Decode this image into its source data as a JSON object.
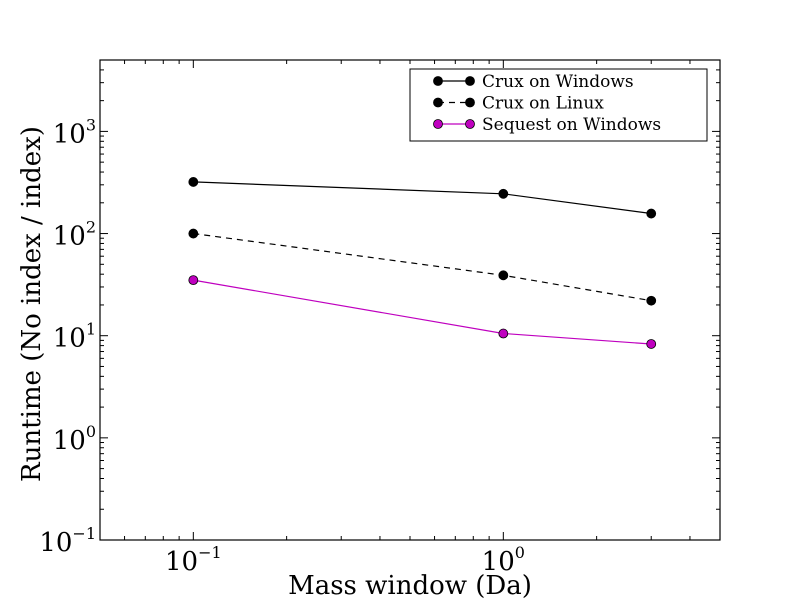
{
  "chart_data": {
    "type": "line",
    "xlabel": "Mass window (Da)",
    "ylabel": "Runtime (No index / index)",
    "xscale": "log",
    "yscale": "log",
    "xlim": [
      0.05,
      5
    ],
    "ylim": [
      0.1,
      5000
    ],
    "grid": false,
    "legend_position": "top-right",
    "x_ticks": [
      {
        "value": 0.1,
        "base": "10",
        "exp": "−1"
      },
      {
        "value": 1,
        "base": "10",
        "exp": "0"
      }
    ],
    "y_ticks": [
      {
        "value": 0.1,
        "base": "10",
        "exp": "−1"
      },
      {
        "value": 1,
        "base": "10",
        "exp": "0"
      },
      {
        "value": 10,
        "base": "10",
        "exp": "1"
      },
      {
        "value": 100,
        "base": "10",
        "exp": "2"
      },
      {
        "value": 1000,
        "base": "10",
        "exp": "3"
      }
    ],
    "x": [
      0.1,
      1,
      3
    ],
    "series": [
      {
        "name": "Crux on Windows",
        "values": [
          320,
          245,
          157
        ],
        "color": "#000000",
        "style": "solid"
      },
      {
        "name": "Crux on Linux",
        "values": [
          100,
          39,
          22
        ],
        "color": "#000000",
        "style": "dashed"
      },
      {
        "name": "Sequest on Windows",
        "values": [
          35,
          10.5,
          8.3
        ],
        "color": "#bf00bf",
        "style": "solid"
      }
    ]
  }
}
